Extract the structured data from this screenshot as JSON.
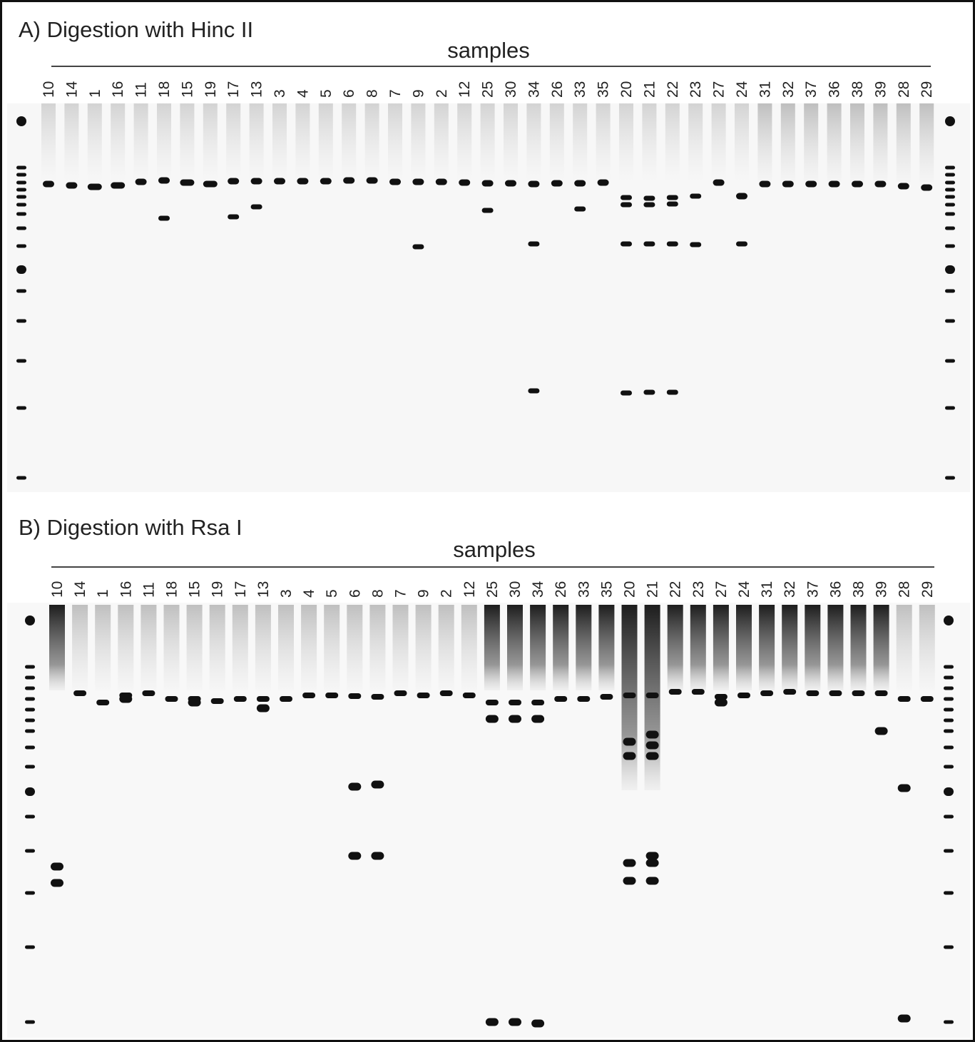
{
  "panels": [
    {
      "title": "A) Digestion with Hinc II",
      "axis_label": "samples",
      "lanes": [
        "10",
        "14",
        "1",
        "16",
        "11",
        "18",
        "15",
        "19",
        "17",
        "13",
        "3",
        "4",
        "5",
        "6",
        "8",
        "7",
        "9",
        "2",
        "12",
        "25",
        "30",
        "34",
        "26",
        "33",
        "35",
        "20",
        "21",
        "22",
        "23",
        "27",
        "24",
        "31",
        "32",
        "37",
        "36",
        "38",
        "39",
        "28",
        "29"
      ]
    },
    {
      "title": "B) Digestion with Rsa I",
      "axis_label": "samples",
      "lanes": [
        "10",
        "14",
        "1",
        "16",
        "11",
        "18",
        "15",
        "19",
        "17",
        "13",
        "3",
        "4",
        "5",
        "6",
        "8",
        "7",
        "9",
        "2",
        "12",
        "25",
        "30",
        "34",
        "26",
        "33",
        "35",
        "20",
        "21",
        "22",
        "23",
        "27",
        "24",
        "31",
        "32",
        "37",
        "36",
        "38",
        "39",
        "28",
        "29"
      ]
    }
  ]
}
